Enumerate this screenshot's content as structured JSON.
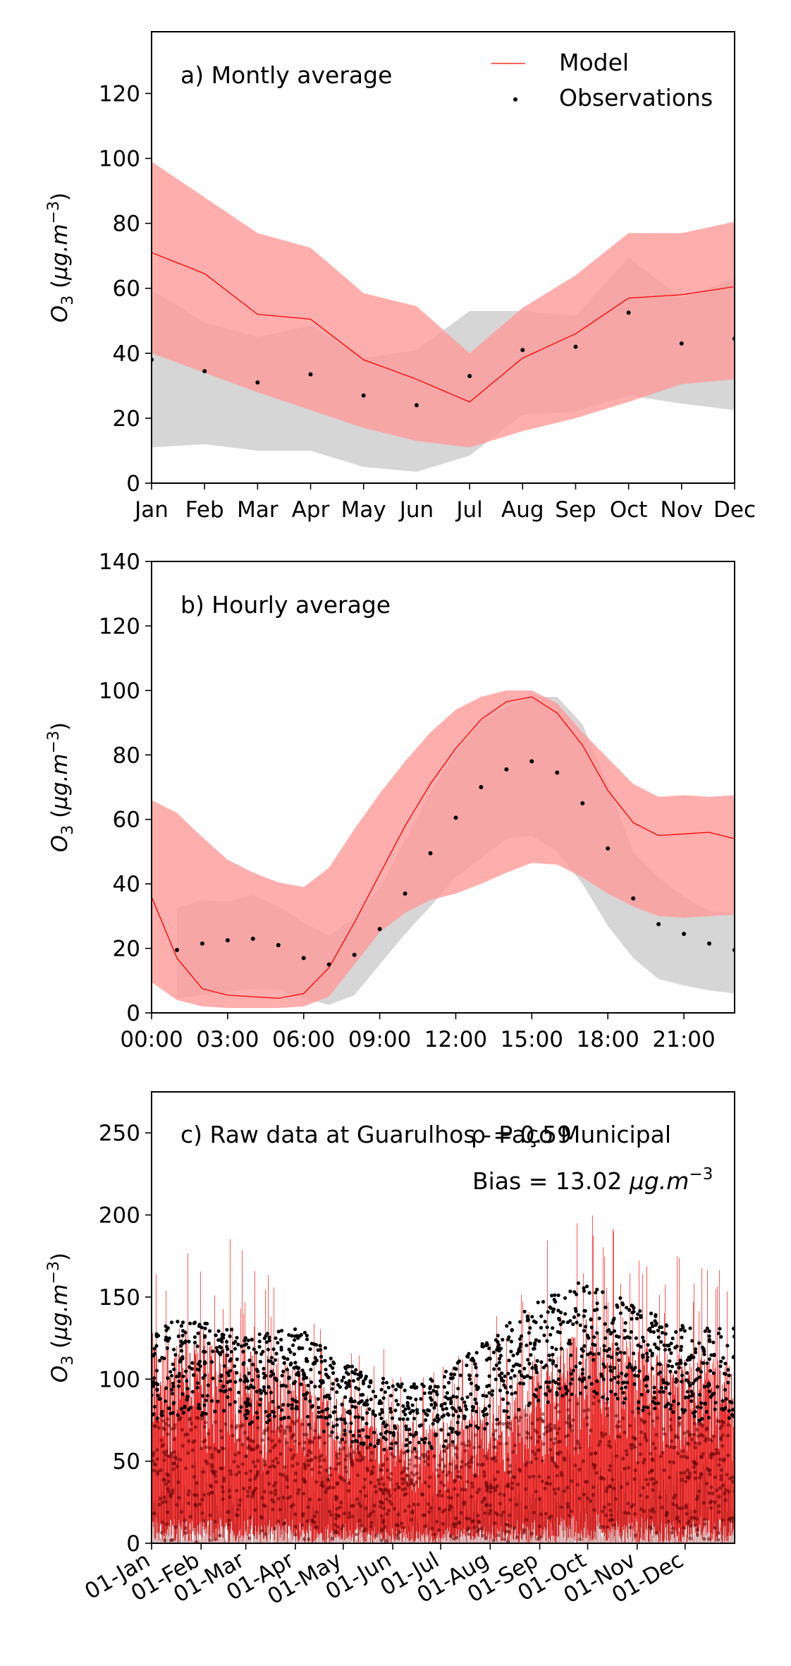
{
  "colors": {
    "model": "#ff0000",
    "model_band": "#ff9a9a",
    "obs_band": "#c8c8c8",
    "obs": "#000000"
  },
  "legend": {
    "model": "Model",
    "observations": "Observations"
  },
  "ylabel": {
    "base": "O",
    "sub": "3",
    "unit_open": " (",
    "mu": "μg.m",
    "exp": "−3",
    "unit_close": ")"
  },
  "chart_data": [
    {
      "type": "line",
      "label": "a) Montly average",
      "categories": [
        "Jan",
        "Feb",
        "Mar",
        "Apr",
        "May",
        "Jun",
        "Jul",
        "Aug",
        "Sep",
        "Oct",
        "Nov",
        "Dec"
      ],
      "ylim": [
        0,
        139
      ],
      "yticks": [
        0,
        20,
        40,
        60,
        80,
        100,
        120
      ],
      "legend_position": "top-right",
      "series": [
        {
          "name": "Model",
          "values": [
            71,
            64.5,
            52,
            50.5,
            38,
            32,
            25,
            38.5,
            46,
            57,
            58,
            60.5
          ]
        },
        {
          "name": "Observations",
          "values": [
            38,
            34.5,
            31,
            33.5,
            27,
            24,
            33,
            41,
            42,
            52.5,
            43,
            44.5
          ]
        }
      ],
      "model_band": {
        "upper": [
          99,
          88,
          77,
          72.5,
          58.5,
          54.5,
          40,
          54,
          64,
          77,
          77,
          80.5
        ],
        "lower": [
          40,
          34,
          28,
          22.5,
          17,
          13,
          11,
          16,
          20,
          25,
          30.5,
          32
        ]
      },
      "obs_band": {
        "upper": [
          59.5,
          49.5,
          45,
          48.5,
          38.5,
          41,
          53,
          53,
          51.5,
          69.5,
          57,
          63
        ],
        "lower": [
          11,
          12,
          10,
          10,
          5,
          3.5,
          8.5,
          21,
          22,
          27,
          24.5,
          22.5
        ]
      }
    },
    {
      "type": "line",
      "label": "b) Hourly average",
      "xticks": [
        "00:00",
        "03:00",
        "06:00",
        "09:00",
        "12:00",
        "15:00",
        "18:00",
        "21:00"
      ],
      "x": [
        0,
        1,
        2,
        3,
        4,
        5,
        6,
        7,
        8,
        9,
        10,
        11,
        12,
        13,
        14,
        15,
        16,
        17,
        18,
        19,
        20,
        21,
        22,
        23
      ],
      "xlim": [
        0,
        23
      ],
      "ylim": [
        0,
        140
      ],
      "yticks": [
        0,
        20,
        40,
        60,
        80,
        100,
        120,
        140
      ],
      "series": [
        {
          "name": "Model",
          "values": [
            36,
            17,
            7.5,
            5.5,
            5,
            4.5,
            6,
            14,
            28,
            43,
            58,
            71,
            82,
            91,
            96.5,
            98,
            93,
            83,
            69,
            59,
            55,
            55.5,
            56,
            54
          ]
        },
        {
          "name": "Observations",
          "values": [
            null,
            19.5,
            21.5,
            22.5,
            23,
            21,
            17,
            15,
            18,
            26,
            37,
            49.5,
            60.5,
            70,
            75.5,
            78,
            74.5,
            65,
            51,
            35.5,
            27.5,
            24.5,
            21.5,
            19.5
          ]
        }
      ],
      "model_band": {
        "upper": [
          66,
          62,
          54.5,
          47.5,
          43.5,
          40.5,
          39,
          45,
          57,
          68,
          78,
          87,
          94,
          98,
          100,
          100,
          96,
          87,
          79,
          71,
          67,
          67.5,
          67,
          67.5
        ],
        "lower": [
          9.5,
          4,
          2,
          1.5,
          1.5,
          1.5,
          2,
          5,
          15,
          25,
          31,
          35,
          37,
          40,
          43.5,
          46.5,
          46,
          42,
          37,
          33,
          30,
          29.5,
          30,
          30.5
        ]
      },
      "obs_band": {
        "x": [
          1,
          2,
          3,
          4,
          5,
          6,
          7,
          8,
          9,
          10,
          11,
          12,
          13,
          14,
          15,
          16,
          17,
          18,
          19,
          20,
          21,
          22,
          23
        ],
        "upper": [
          32.5,
          35,
          34.5,
          36.5,
          33,
          28,
          24,
          29.5,
          38.5,
          53.5,
          68.5,
          81,
          90,
          95,
          98,
          98,
          89.5,
          71,
          50,
          42,
          36,
          31.5,
          31
        ],
        "lower": [
          4.5,
          5.5,
          6.5,
          7.5,
          7,
          4.5,
          2.5,
          5.5,
          15,
          24.5,
          33,
          42,
          48,
          54,
          55,
          50,
          40,
          27,
          17,
          10.5,
          8.5,
          7,
          6
        ]
      }
    },
    {
      "type": "line",
      "label": "c) Raw data at Guarulhos - Paço Municipal",
      "xticks": [
        "01-Jan",
        "01-Feb",
        "01-Mar",
        "01-Apr",
        "01-May",
        "01-Jun",
        "01-Jul",
        "01-Aug",
        "01-Sep",
        "01-Oct",
        "01-Nov",
        "01-Dec"
      ],
      "xlim": [
        0,
        365
      ],
      "ylim": [
        0,
        275
      ],
      "yticks": [
        0,
        50,
        100,
        150,
        200,
        250
      ],
      "stats": {
        "rho": "ρ = 0.59",
        "bias_prefix": "Bias = 13.02 ",
        "bias_unit": "μg.m",
        "bias_exp": "−3"
      },
      "model_envelope_by_month": [
        135,
        140,
        125,
        115,
        95,
        80,
        78,
        95,
        125,
        145,
        130,
        120
      ],
      "obs_envelope_by_month": [
        115,
        120,
        110,
        115,
        95,
        85,
        90,
        110,
        130,
        140,
        125,
        115
      ],
      "series": [
        {
          "name": "Model",
          "values": []
        },
        {
          "name": "Observations",
          "values": []
        }
      ]
    }
  ]
}
